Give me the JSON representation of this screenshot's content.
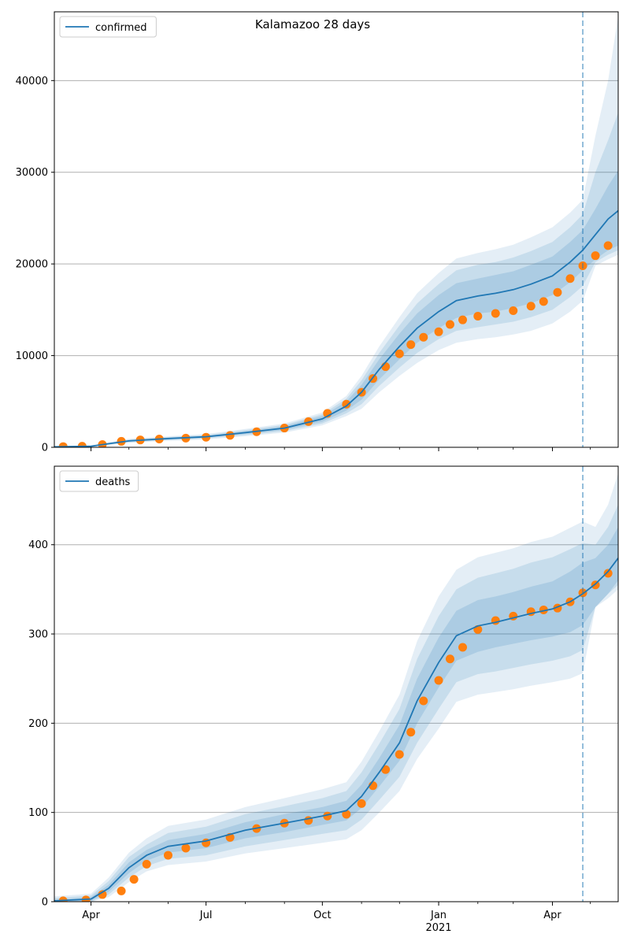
{
  "title": "Kalamazoo 28 days",
  "colors": {
    "model_line": "#1f77b4",
    "observed": "#ff7f0e",
    "band": "#1f77b4",
    "grid": "#b0b0b0",
    "forecast_marker": "#1f77b4"
  },
  "x_ticks": [
    {
      "label": "Apr",
      "date": "2020-04-01"
    },
    {
      "label": "Jul",
      "date": "2020-07-01"
    },
    {
      "label": "Oct",
      "date": "2020-10-01"
    },
    {
      "label": "Jan",
      "date": "2021-01-01",
      "sublabel": "2021"
    },
    {
      "label": "Apr",
      "date": "2021-04-01"
    }
  ],
  "x_minor_ticks": [
    "2020-05-01",
    "2020-06-01",
    "2020-08-01",
    "2020-09-01",
    "2020-11-01",
    "2020-12-01",
    "2021-02-01",
    "2021-03-01",
    "2021-05-01"
  ],
  "chart_data": [
    {
      "type": "line",
      "legend": "confirmed",
      "legend_position": "top-left",
      "grid": "horizontal",
      "xlim": [
        "2020-03-03",
        "2021-05-23"
      ],
      "ylim": [
        0,
        47500
      ],
      "yticks": [
        0,
        10000,
        20000,
        30000,
        40000
      ],
      "forecast_start": "2021-04-25",
      "series": [
        {
          "name": "confirmed",
          "role": "model",
          "x": [
            "2020-03-03",
            "2020-04-01",
            "2020-05-01",
            "2020-06-01",
            "2020-07-01",
            "2020-08-01",
            "2020-09-01",
            "2020-10-01",
            "2020-10-20",
            "2020-11-01",
            "2020-11-15",
            "2020-12-01",
            "2020-12-15",
            "2021-01-01",
            "2021-01-15",
            "2021-02-01",
            "2021-02-15",
            "2021-03-01",
            "2021-03-15",
            "2021-04-01",
            "2021-04-15",
            "2021-04-25",
            "2021-05-05",
            "2021-05-15",
            "2021-05-23"
          ],
          "y": [
            50,
            120,
            700,
            950,
            1150,
            1600,
            2100,
            3100,
            4500,
            6000,
            8500,
            11000,
            13000,
            14800,
            16000,
            16500,
            16800,
            17200,
            17800,
            18700,
            20200,
            21500,
            23200,
            24900,
            25800
          ],
          "band_50": [
            [
              30,
              80
            ],
            [
              100,
              150
            ],
            [
              620,
              780
            ],
            [
              850,
              1050
            ],
            [
              1050,
              1250
            ],
            [
              1450,
              1750
            ],
            [
              1900,
              2300
            ],
            [
              2800,
              3400
            ],
            [
              4000,
              5000
            ],
            [
              5200,
              6800
            ],
            [
              7400,
              9600
            ],
            [
              9600,
              12400
            ],
            [
              11400,
              14600
            ],
            [
              13000,
              16600
            ],
            [
              14100,
              17900
            ],
            [
              14600,
              18400
            ],
            [
              14800,
              18800
            ],
            [
              15200,
              19200
            ],
            [
              15700,
              19900
            ],
            [
              16600,
              20800
            ],
            [
              18000,
              22400
            ],
            [
              19300,
              23700
            ],
            [
              20500,
              26000
            ],
            [
              21500,
              28500
            ],
            [
              22000,
              30200
            ]
          ],
          "band_80": [
            [
              20,
              100
            ],
            [
              80,
              180
            ],
            [
              550,
              850
            ],
            [
              780,
              1120
            ],
            [
              960,
              1340
            ],
            [
              1330,
              1870
            ],
            [
              1760,
              2440
            ],
            [
              2600,
              3600
            ],
            [
              3700,
              5300
            ],
            [
              4700,
              7300
            ],
            [
              6700,
              10300
            ],
            [
              8700,
              13300
            ],
            [
              10300,
              15700
            ],
            [
              11800,
              17800
            ],
            [
              12700,
              19300
            ],
            [
              13100,
              19900
            ],
            [
              13400,
              20200
            ],
            [
              13700,
              20700
            ],
            [
              14200,
              21400
            ],
            [
              15000,
              22400
            ],
            [
              16400,
              24000
            ],
            [
              17600,
              25400
            ],
            [
              20200,
              30000
            ],
            [
              21000,
              33500
            ],
            [
              21500,
              36500
            ]
          ],
          "band_95": [
            [
              10,
              130
            ],
            [
              60,
              210
            ],
            [
              480,
              920
            ],
            [
              700,
              1200
            ],
            [
              860,
              1440
            ],
            [
              1200,
              2000
            ],
            [
              1600,
              2600
            ],
            [
              2400,
              3800
            ],
            [
              3400,
              5600
            ],
            [
              4200,
              7800
            ],
            [
              6000,
              11000
            ],
            [
              7800,
              14200
            ],
            [
              9200,
              16800
            ],
            [
              10600,
              19000
            ],
            [
              11400,
              20600
            ],
            [
              11800,
              21200
            ],
            [
              12000,
              21600
            ],
            [
              12300,
              22100
            ],
            [
              12700,
              22900
            ],
            [
              13500,
              24000
            ],
            [
              14800,
              25600
            ],
            [
              16000,
              27000
            ],
            [
              19800,
              34000
            ],
            [
              20500,
              40000
            ],
            [
              21000,
              47000
            ]
          ]
        },
        {
          "name": "observed",
          "role": "observed",
          "x": [
            "2020-03-10",
            "2020-03-25",
            "2020-04-10",
            "2020-04-25",
            "2020-05-10",
            "2020-05-25",
            "2020-06-15",
            "2020-07-01",
            "2020-07-20",
            "2020-08-10",
            "2020-09-01",
            "2020-09-20",
            "2020-10-05",
            "2020-10-20",
            "2020-11-01",
            "2020-11-10",
            "2020-11-20",
            "2020-12-01",
            "2020-12-10",
            "2020-12-20",
            "2021-01-01",
            "2021-01-10",
            "2021-01-20",
            "2021-02-01",
            "2021-02-15",
            "2021-03-01",
            "2021-03-15",
            "2021-03-25",
            "2021-04-05",
            "2021-04-15",
            "2021-04-25",
            "2021-05-05",
            "2021-05-15"
          ],
          "y": [
            80,
            120,
            300,
            650,
            800,
            900,
            1000,
            1100,
            1300,
            1700,
            2100,
            2800,
            3700,
            4700,
            6000,
            7500,
            8800,
            10200,
            11200,
            12000,
            12600,
            13400,
            13900,
            14300,
            14600,
            14900,
            15400,
            15900,
            16900,
            18400,
            19800,
            20900,
            22000
          ]
        }
      ]
    },
    {
      "type": "line",
      "legend": "deaths",
      "legend_position": "top-left",
      "grid": "horizontal",
      "xlim": [
        "2020-03-03",
        "2021-05-23"
      ],
      "ylim": [
        0,
        488
      ],
      "yticks": [
        0,
        100,
        200,
        300,
        400
      ],
      "forecast_start": "2021-04-25",
      "series": [
        {
          "name": "deaths",
          "role": "model",
          "x": [
            "2020-03-03",
            "2020-04-01",
            "2020-04-15",
            "2020-05-01",
            "2020-05-15",
            "2020-06-01",
            "2020-07-01",
            "2020-08-01",
            "2020-09-01",
            "2020-10-01",
            "2020-10-20",
            "2020-11-01",
            "2020-11-15",
            "2020-12-01",
            "2020-12-15",
            "2021-01-01",
            "2021-01-15",
            "2021-02-01",
            "2021-02-15",
            "2021-03-01",
            "2021-03-15",
            "2021-04-01",
            "2021-04-15",
            "2021-04-25",
            "2021-05-05",
            "2021-05-15",
            "2021-05-23"
          ],
          "y": [
            1,
            3,
            15,
            38,
            52,
            62,
            68,
            80,
            88,
            96,
            102,
            118,
            145,
            178,
            225,
            268,
            298,
            309,
            313,
            318,
            323,
            328,
            336,
            345,
            356,
            370,
            385
          ],
          "band_50": [
            [
              0,
              2
            ],
            [
              1,
              5
            ],
            [
              11,
              19
            ],
            [
              32,
              44
            ],
            [
              46,
              58
            ],
            [
              55,
              69
            ],
            [
              60,
              76
            ],
            [
              71,
              89
            ],
            [
              78,
              98
            ],
            [
              86,
              106
            ],
            [
              91,
              113
            ],
            [
              105,
              131
            ],
            [
              129,
              161
            ],
            [
              158,
              198
            ],
            [
              200,
              250
            ],
            [
              240,
              296
            ],
            [
              270,
              326
            ],
            [
              280,
              338
            ],
            [
              285,
              342
            ],
            [
              289,
              347
            ],
            [
              293,
              353
            ],
            [
              297,
              359
            ],
            [
              302,
              370
            ],
            [
              310,
              380
            ],
            [
              330,
              385
            ],
            [
              345,
              400
            ],
            [
              360,
              420
            ]
          ],
          "band_80": [
            [
              0,
              4
            ],
            [
              0,
              7
            ],
            [
              8,
              23
            ],
            [
              27,
              50
            ],
            [
              40,
              64
            ],
            [
              48,
              77
            ],
            [
              52,
              84
            ],
            [
              62,
              98
            ],
            [
              69,
              107
            ],
            [
              76,
              116
            ],
            [
              80,
              124
            ],
            [
              92,
              145
            ],
            [
              114,
              177
            ],
            [
              140,
              216
            ],
            [
              178,
              272
            ],
            [
              216,
              320
            ],
            [
              246,
              350
            ],
            [
              255,
              363
            ],
            [
              258,
              368
            ],
            [
              262,
              373
            ],
            [
              266,
              380
            ],
            [
              270,
              386
            ],
            [
              275,
              395
            ],
            [
              282,
              402
            ],
            [
              330,
              400
            ],
            [
              345,
              420
            ],
            [
              355,
              445
            ]
          ],
          "band_95": [
            [
              0,
              6
            ],
            [
              0,
              9
            ],
            [
              5,
              27
            ],
            [
              22,
              55
            ],
            [
              34,
              71
            ],
            [
              41,
              85
            ],
            [
              45,
              92
            ],
            [
              54,
              106
            ],
            [
              60,
              116
            ],
            [
              66,
              126
            ],
            [
              70,
              134
            ],
            [
              80,
              157
            ],
            [
              100,
              191
            ],
            [
              124,
              232
            ],
            [
              160,
              292
            ],
            [
              194,
              342
            ],
            [
              224,
              372
            ],
            [
              232,
              386
            ],
            [
              235,
              391
            ],
            [
              238,
              396
            ],
            [
              242,
              403
            ],
            [
              246,
              409
            ],
            [
              250,
              419
            ],
            [
              256,
              426
            ],
            [
              330,
              420
            ],
            [
              340,
              445
            ],
            [
              350,
              480
            ]
          ]
        },
        {
          "name": "observed",
          "role": "observed",
          "x": [
            "2020-03-10",
            "2020-03-28",
            "2020-04-10",
            "2020-04-25",
            "2020-05-05",
            "2020-05-15",
            "2020-06-01",
            "2020-06-15",
            "2020-07-01",
            "2020-07-20",
            "2020-08-10",
            "2020-09-01",
            "2020-09-20",
            "2020-10-05",
            "2020-10-20",
            "2020-11-01",
            "2020-11-10",
            "2020-11-20",
            "2020-12-01",
            "2020-12-10",
            "2020-12-20",
            "2021-01-01",
            "2021-01-10",
            "2021-01-20",
            "2021-02-01",
            "2021-02-15",
            "2021-03-01",
            "2021-03-15",
            "2021-03-25",
            "2021-04-05",
            "2021-04-15",
            "2021-04-25",
            "2021-05-05",
            "2021-05-15"
          ],
          "y": [
            1,
            2,
            8,
            12,
            25,
            42,
            52,
            60,
            66,
            72,
            82,
            88,
            91,
            96,
            98,
            110,
            130,
            148,
            165,
            190,
            225,
            248,
            272,
            285,
            305,
            315,
            320,
            325,
            327,
            329,
            336,
            346,
            355,
            368
          ]
        }
      ]
    }
  ]
}
